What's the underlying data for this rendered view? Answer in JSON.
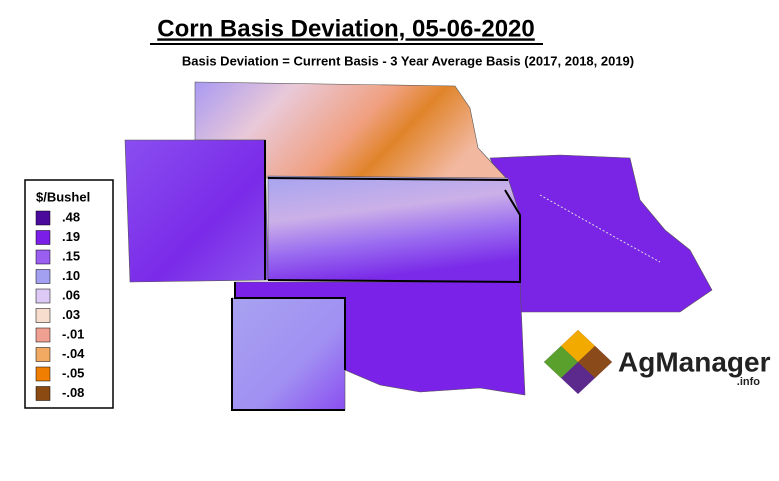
{
  "header": {
    "title": "Corn Basis Deviation, 05-06-2020",
    "subtitle": "Basis Deviation = Current Basis - 3 Year Average Basis (2017, 2018, 2019)"
  },
  "legend": {
    "title": "$/Bushel",
    "items": [
      {
        "label": ".48",
        "color": "#4a0a9c"
      },
      {
        "label": ".19",
        "color": "#7b1ee8"
      },
      {
        "label": ".15",
        "color": "#9a5ef0"
      },
      {
        "label": ".10",
        "color": "#a3a0f2"
      },
      {
        "label": ".06",
        "color": "#dcc9f6"
      },
      {
        "label": ".03",
        "color": "#f6ddce"
      },
      {
        "label": "-.01",
        "color": "#f0a090"
      },
      {
        "label": "-.04",
        "color": "#f2aa62"
      },
      {
        "label": "-.05",
        "color": "#f07e00"
      },
      {
        "label": "-.08",
        "color": "#8a4a12"
      }
    ]
  },
  "logo": {
    "name": "AgManager",
    "suffix": ".info"
  }
}
